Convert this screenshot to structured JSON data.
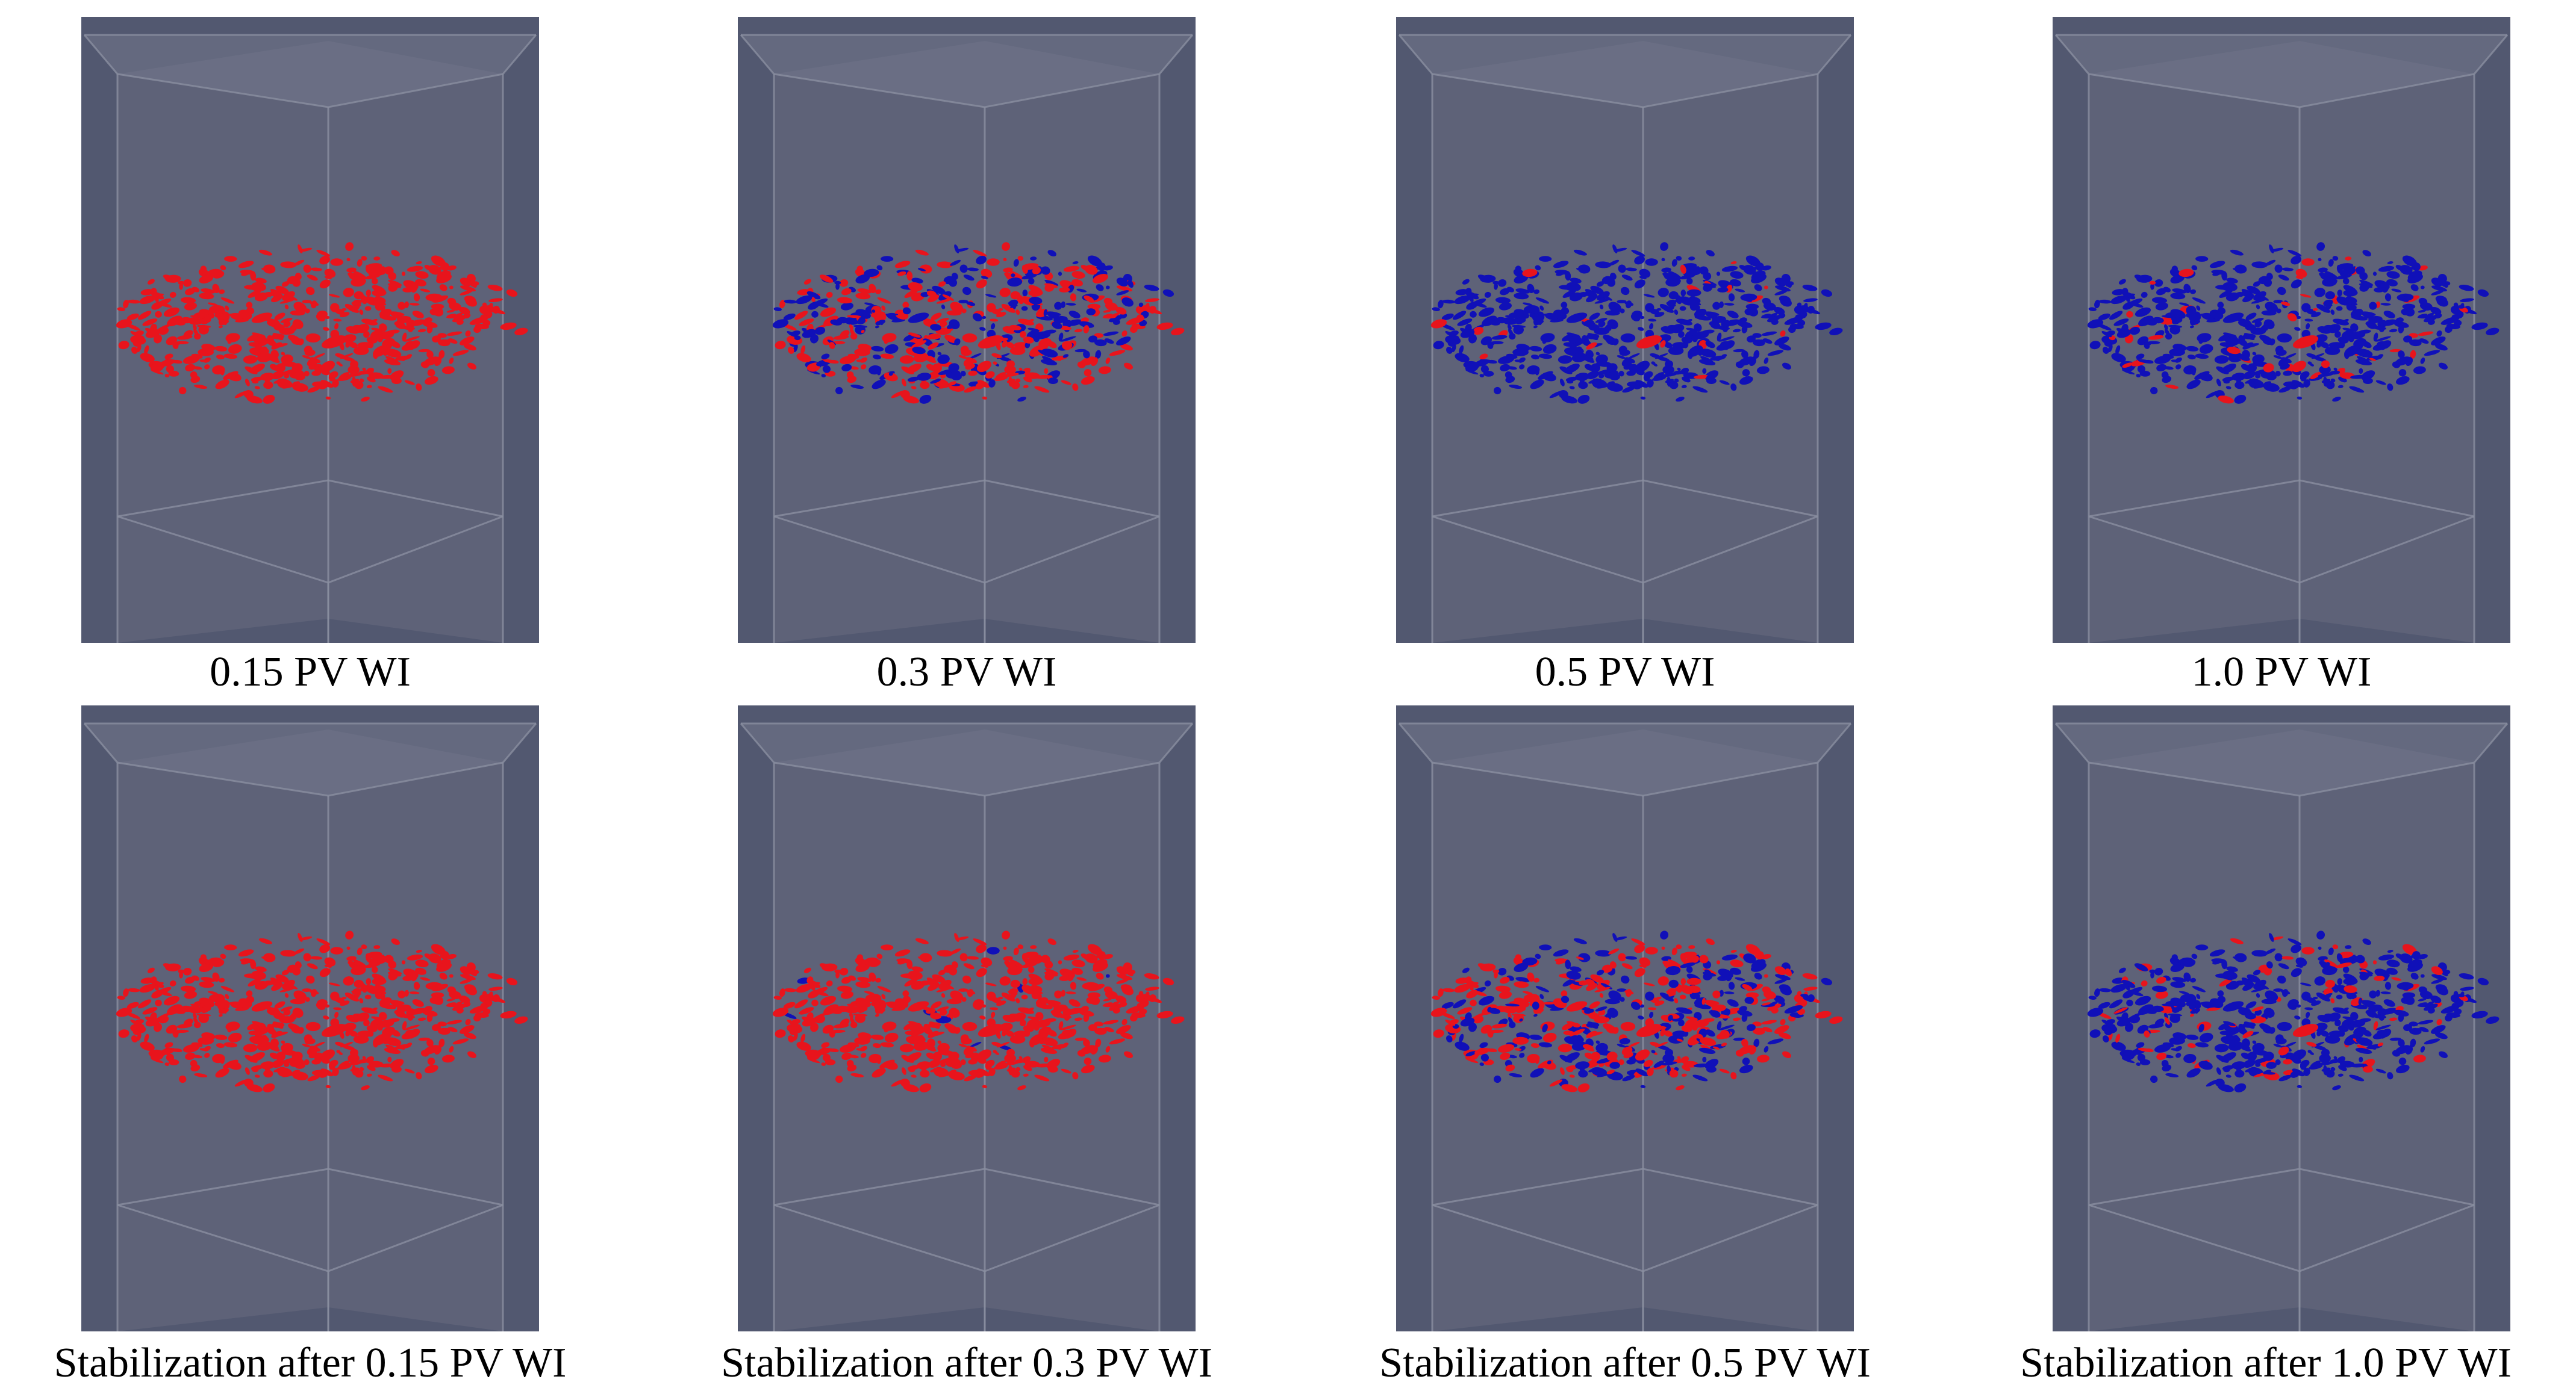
{
  "figure": {
    "top_row": [
      {
        "caption": "0.15 PV WI",
        "phase_mix": 0.0
      },
      {
        "caption": "0.3 PV WI",
        "phase_mix": 0.45
      },
      {
        "caption": "0.5 PV WI",
        "phase_mix": 0.97
      },
      {
        "caption": "1.0 PV WI",
        "phase_mix": 0.9
      }
    ],
    "bottom_row": [
      {
        "caption": "Stabilization after 0.15 PV WI",
        "phase_mix": 0.0
      },
      {
        "caption": "Stabilization after 0.3 PV WI",
        "phase_mix": 0.02
      },
      {
        "caption": "Stabilization after 0.5 PV WI",
        "phase_mix": 0.45
      },
      {
        "caption": "Stabilization after 1.0 PV WI",
        "phase_mix": 0.85
      }
    ]
  },
  "colors": {
    "background": "#525870",
    "box_face": "#676c80",
    "box_edge": "#8a8ea0",
    "phase_a": "#e8141c",
    "phase_b": "#1010b8"
  }
}
